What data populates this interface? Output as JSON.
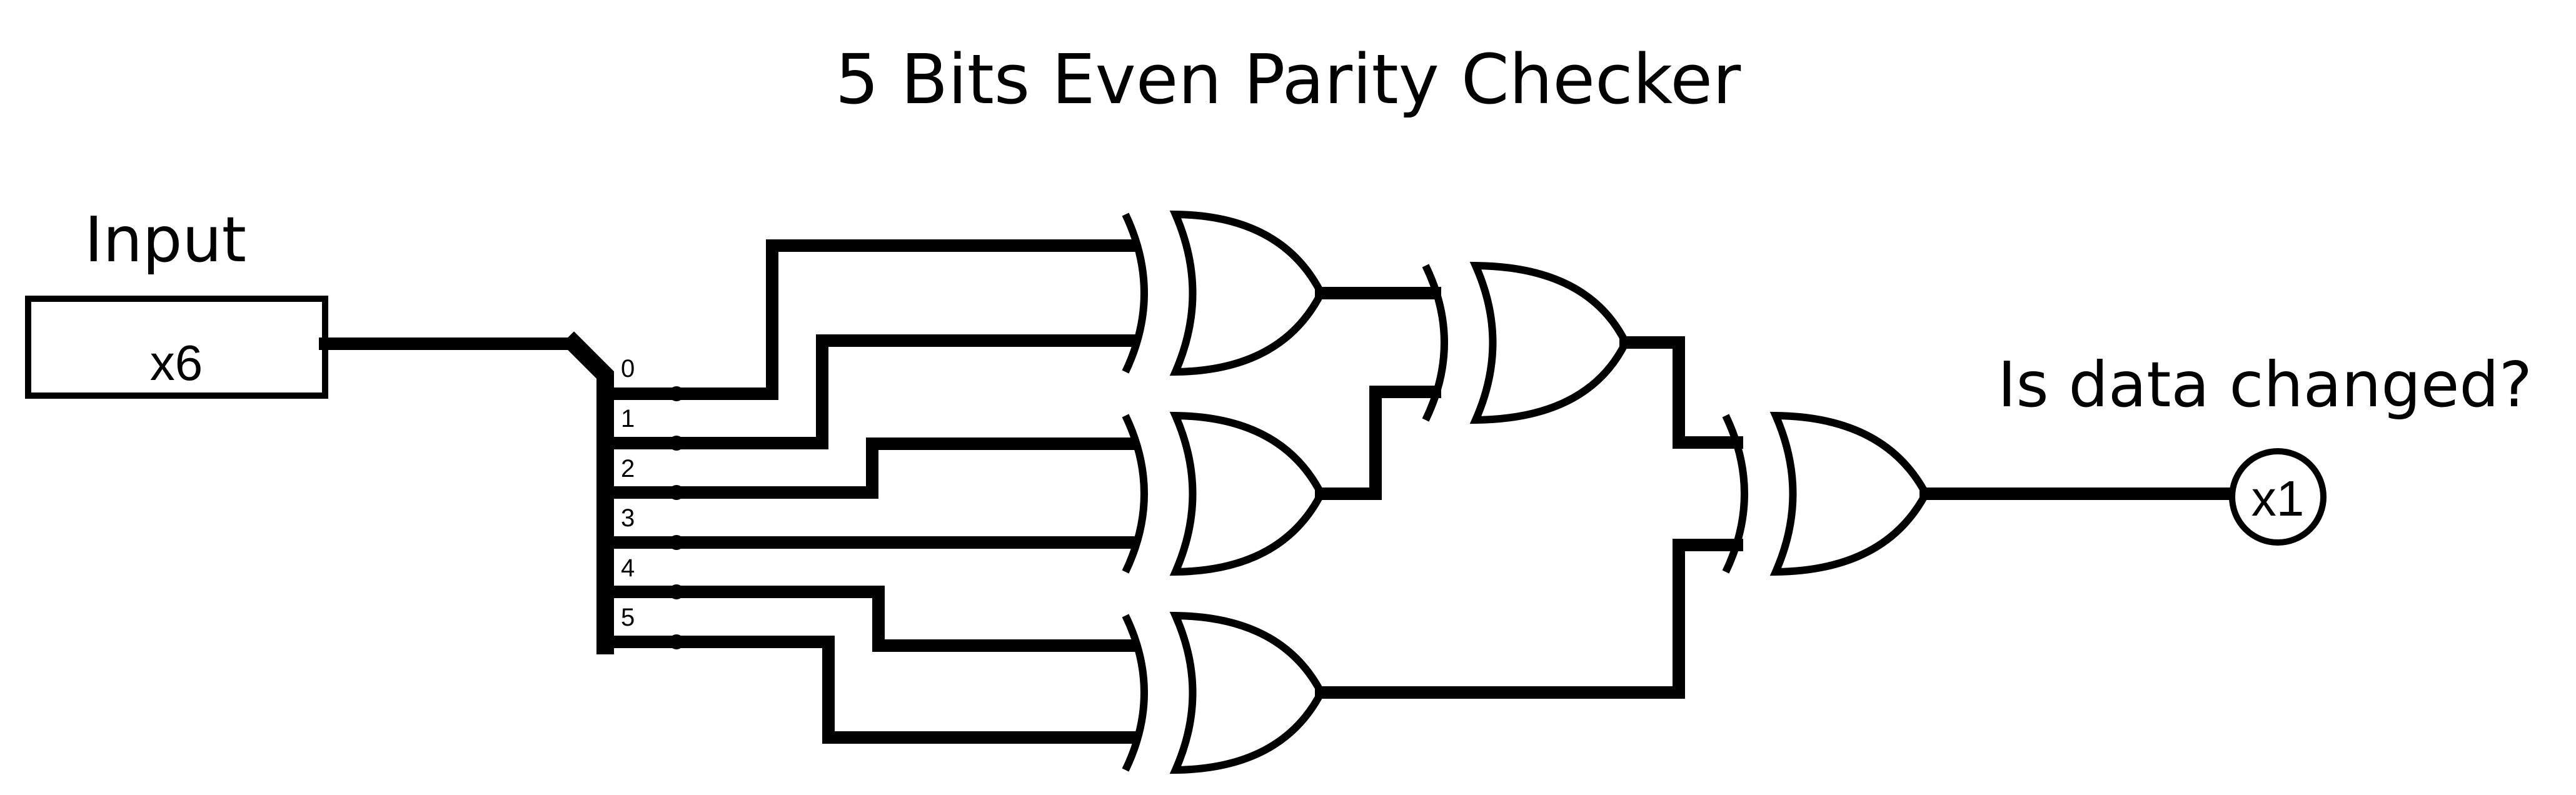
{
  "title": "5 Bits Even Parity Checker",
  "input": {
    "label": "Input",
    "pin": "x6"
  },
  "output": {
    "label": "Is data changed?",
    "pin": "x1"
  },
  "splitter_bits": [
    "0",
    "1",
    "2",
    "3",
    "4",
    "5"
  ],
  "colors": {
    "ink": "#000000",
    "background": "#ffffff"
  }
}
